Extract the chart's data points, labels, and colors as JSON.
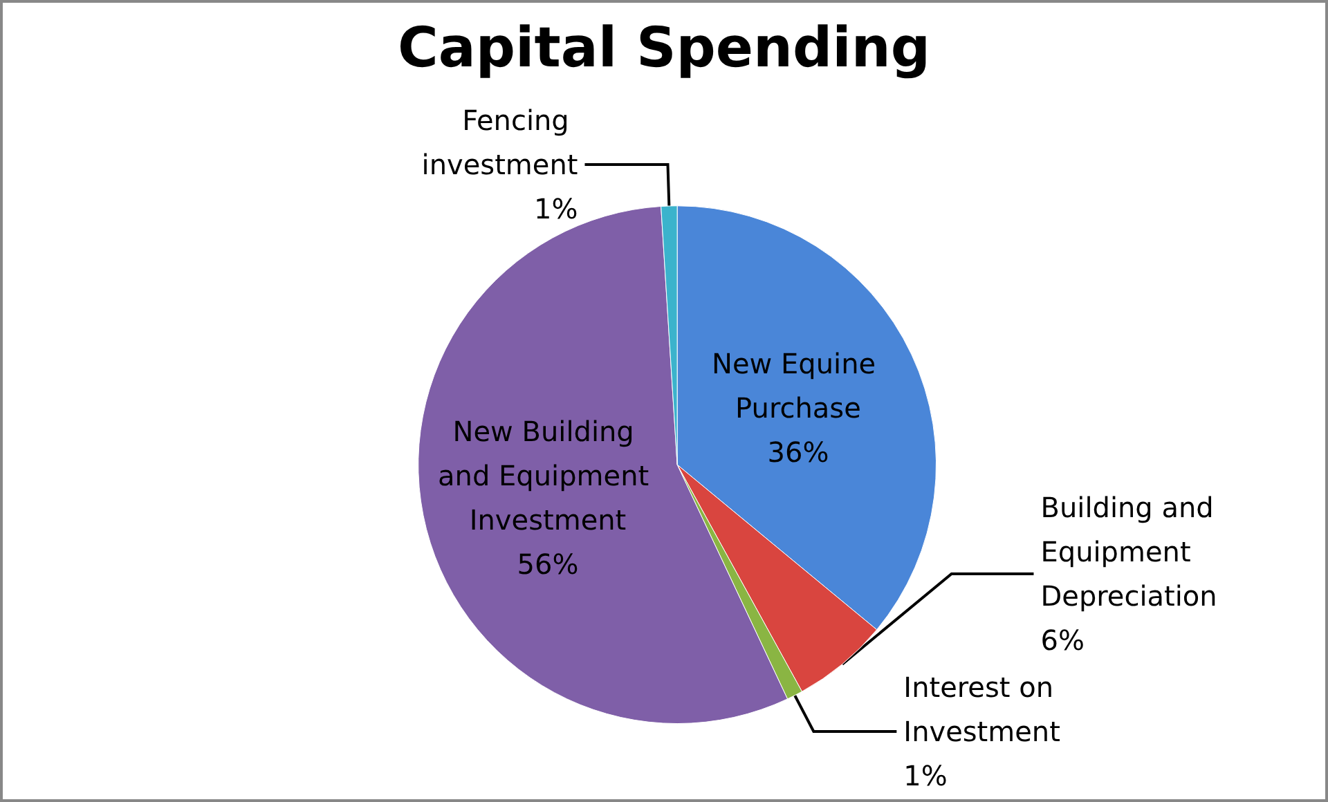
{
  "chart_data": {
    "type": "pie",
    "title": "Capital Spending",
    "categories": [
      "New Equine Purchase",
      "Building and Equipment Depreciation",
      "Interest on Investment",
      "New Building and Equipment Investment",
      "Fencing investment"
    ],
    "values": [
      36,
      6,
      1,
      56,
      1
    ],
    "value_labels": [
      "36%",
      "6%",
      "1%",
      "56%",
      "1%"
    ],
    "colors": [
      "#4a86d8",
      "#d9453f",
      "#8ab543",
      "#7f5fa8",
      "#3bb3cc"
    ],
    "legend": false
  }
}
